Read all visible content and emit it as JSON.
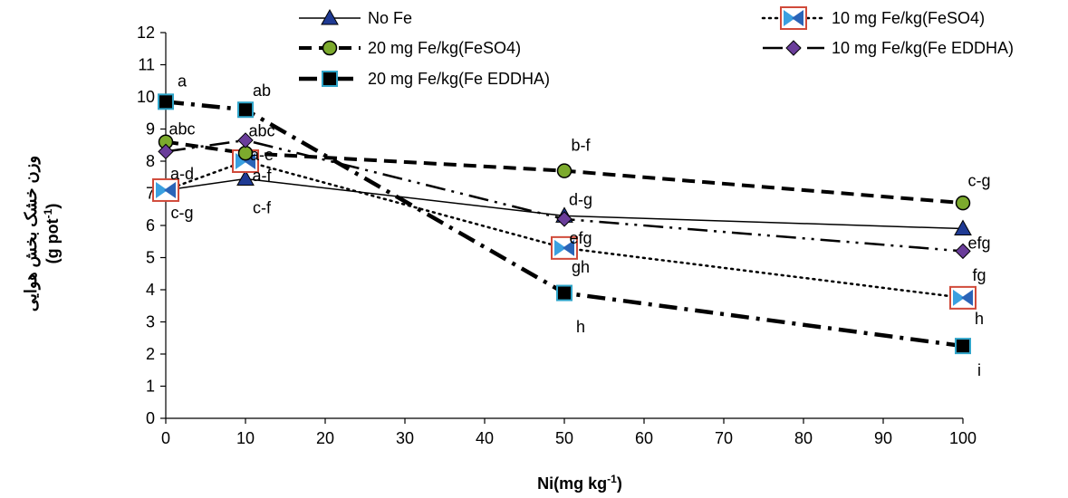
{
  "chart_data": {
    "type": "line",
    "xlabel": "Ni(mg kg",
    "xlabel_sup": "-1",
    "xlabel_end": ")",
    "ylabel_line1": "وزن خشک بخش هوایی",
    "ylabel_line2": "(g pot",
    "ylabel_line2_sup": "-1",
    "ylabel_line2_end": ")",
    "xlim": [
      0,
      100
    ],
    "ylim": [
      0,
      12
    ],
    "xticks": [
      "0",
      "10",
      "20",
      "30",
      "40",
      "50",
      "60",
      "70",
      "80",
      "90",
      "100"
    ],
    "yticks": [
      "0",
      "1",
      "2",
      "3",
      "4",
      "5",
      "6",
      "7",
      "8",
      "9",
      "10",
      "11",
      "12"
    ],
    "x": [
      0,
      10,
      50,
      100
    ],
    "grid": false,
    "legend_position": "top",
    "series": [
      {
        "name": "No Fe",
        "values": [
          7.1,
          7.45,
          6.3,
          5.9
        ],
        "color": "#000000",
        "marker": "triangle",
        "marker_color": "#1F3A93",
        "dash": "none",
        "width": 1.5
      },
      {
        "name": "10 mg Fe/kg(FeSO4)",
        "values": [
          7.1,
          8.0,
          5.3,
          3.75
        ],
        "color": "#000000",
        "marker": "bowtie",
        "marker_color": "#3AA0E0",
        "dash": "dots",
        "width": 2.5
      },
      {
        "name": "20 mg Fe/kg(FeSO4)",
        "values": [
          8.6,
          8.25,
          7.7,
          6.7
        ],
        "color": "#000000",
        "marker": "circle",
        "marker_color": "#7CAA2D",
        "dash": "dash",
        "width": 4
      },
      {
        "name": "10 mg Fe/kg(Fe EDDHA)",
        "values": [
          8.3,
          8.65,
          6.2,
          5.2
        ],
        "color": "#000000",
        "marker": "diamond",
        "marker_color": "#6A3D9A",
        "dash": "dashdotdot",
        "width": 2.5
      },
      {
        "name": "20 mg Fe/kg(Fe EDDHA)",
        "values": [
          9.85,
          9.6,
          3.9,
          2.25
        ],
        "color": "#000000",
        "marker": "square",
        "marker_color": "#000000",
        "dash": "dashdot",
        "width": 4.5
      }
    ],
    "annotations": [
      {
        "text": "a",
        "x": 0,
        "y": 10.5
      },
      {
        "text": "abc",
        "x": 0,
        "y": 9.0
      },
      {
        "text": "a-d",
        "x": 0,
        "y": 7.6
      },
      {
        "text": "c-g",
        "x": 0,
        "y": 6.4
      },
      {
        "text": "ab",
        "x": 10,
        "y": 10.2
      },
      {
        "text": "abc",
        "x": 10,
        "y": 8.95
      },
      {
        "text": "a-e",
        "x": 10,
        "y": 8.2
      },
      {
        "text": "a-f",
        "x": 10,
        "y": 7.55
      },
      {
        "text": "c-f",
        "x": 10,
        "y": 6.55
      },
      {
        "text": "b-f",
        "x": 50,
        "y": 8.5
      },
      {
        "text": "d-g",
        "x": 50,
        "y": 6.8
      },
      {
        "text": "efg",
        "x": 50,
        "y": 5.6
      },
      {
        "text": "gh",
        "x": 50,
        "y": 4.7
      },
      {
        "text": "h",
        "x": 50,
        "y": 2.85
      },
      {
        "text": "c-g",
        "x": 100,
        "y": 7.4
      },
      {
        "text": "efg",
        "x": 100,
        "y": 5.45
      },
      {
        "text": "fg",
        "x": 100,
        "y": 4.45
      },
      {
        "text": "h",
        "x": 100,
        "y": 3.1
      },
      {
        "text": "i",
        "x": 100,
        "y": 1.5
      }
    ]
  }
}
